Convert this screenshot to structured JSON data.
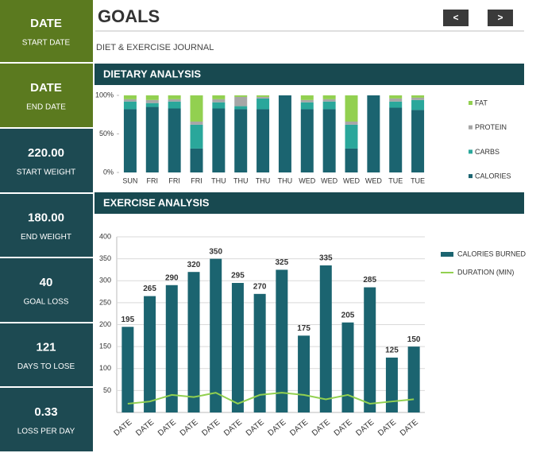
{
  "sidebar": [
    {
      "value": "DATE",
      "label": "START DATE"
    },
    {
      "value": "DATE",
      "label": "END DATE"
    },
    {
      "value": "220.00",
      "label": "START WEIGHT"
    },
    {
      "value": "180.00",
      "label": "END WEIGHT"
    },
    {
      "value": "40",
      "label": "GOAL LOSS"
    },
    {
      "value": "121",
      "label": "DAYS TO LOSE"
    },
    {
      "value": "0.33",
      "label": "LOSS PER DAY"
    }
  ],
  "header": {
    "title": "GOALS",
    "subtitle": "DIET & EXERCISE JOURNAL",
    "prev": "<",
    "next": ">"
  },
  "sections": [
    "DIETARY ANALYSIS",
    "EXERCISE ANALYSIS"
  ],
  "chart_data": [
    {
      "type": "stacked_bar",
      "categories": [
        "SUN",
        "FRI",
        "FRI",
        "FRI",
        "THU",
        "THU",
        "THU",
        "THU",
        "WED",
        "WED",
        "WED",
        "WED",
        "TUE",
        "TUE"
      ],
      "series": [
        {
          "name": "CALORIES",
          "color": "#1b6470",
          "values": [
            82,
            85,
            83,
            31,
            83,
            82,
            82,
            100,
            82,
            82,
            31,
            100,
            84,
            81
          ]
        },
        {
          "name": "CARBS",
          "color": "#2aa79b",
          "values": [
            10,
            5,
            9,
            31,
            8,
            4,
            14,
            0,
            9,
            10,
            31,
            0,
            8,
            13
          ]
        },
        {
          "name": "PROTEIN",
          "color": "#a6a6a6",
          "values": [
            3,
            4,
            3,
            4,
            4,
            12,
            2,
            0,
            3,
            3,
            4,
            0,
            4,
            3
          ]
        },
        {
          "name": "FAT",
          "color": "#92d050",
          "values": [
            5,
            6,
            5,
            34,
            5,
            2,
            2,
            0,
            6,
            5,
            34,
            0,
            4,
            3
          ]
        }
      ],
      "ylim": [
        0,
        100
      ],
      "yticks": [
        {
          "value": 0,
          "label": "0%"
        },
        {
          "value": 50,
          "label": "50%"
        },
        {
          "value": 100,
          "label": "100%"
        }
      ],
      "legend": "right"
    },
    {
      "type": "bar_line",
      "categories": [
        "DATE",
        "DATE",
        "DATE",
        "DATE",
        "DATE",
        "DATE",
        "DATE",
        "DATE",
        "DATE",
        "DATE",
        "DATE",
        "DATE",
        "DATE",
        "DATE"
      ],
      "series": [
        {
          "name": "CALORIES BURNED",
          "type": "bar",
          "color": "#1b6470",
          "values": [
            195,
            265,
            290,
            320,
            350,
            295,
            270,
            325,
            175,
            335,
            205,
            285,
            125,
            150
          ]
        },
        {
          "name": "DURATION (MIN)",
          "type": "line",
          "color": "#92d050",
          "values": [
            20,
            25,
            40,
            35,
            45,
            20,
            40,
            45,
            40,
            30,
            40,
            20,
            25,
            30
          ]
        }
      ],
      "ylim": [
        0,
        400
      ],
      "yticks": [
        50,
        100,
        150,
        200,
        250,
        300,
        350,
        400
      ],
      "grid": true,
      "legend": "right"
    }
  ]
}
